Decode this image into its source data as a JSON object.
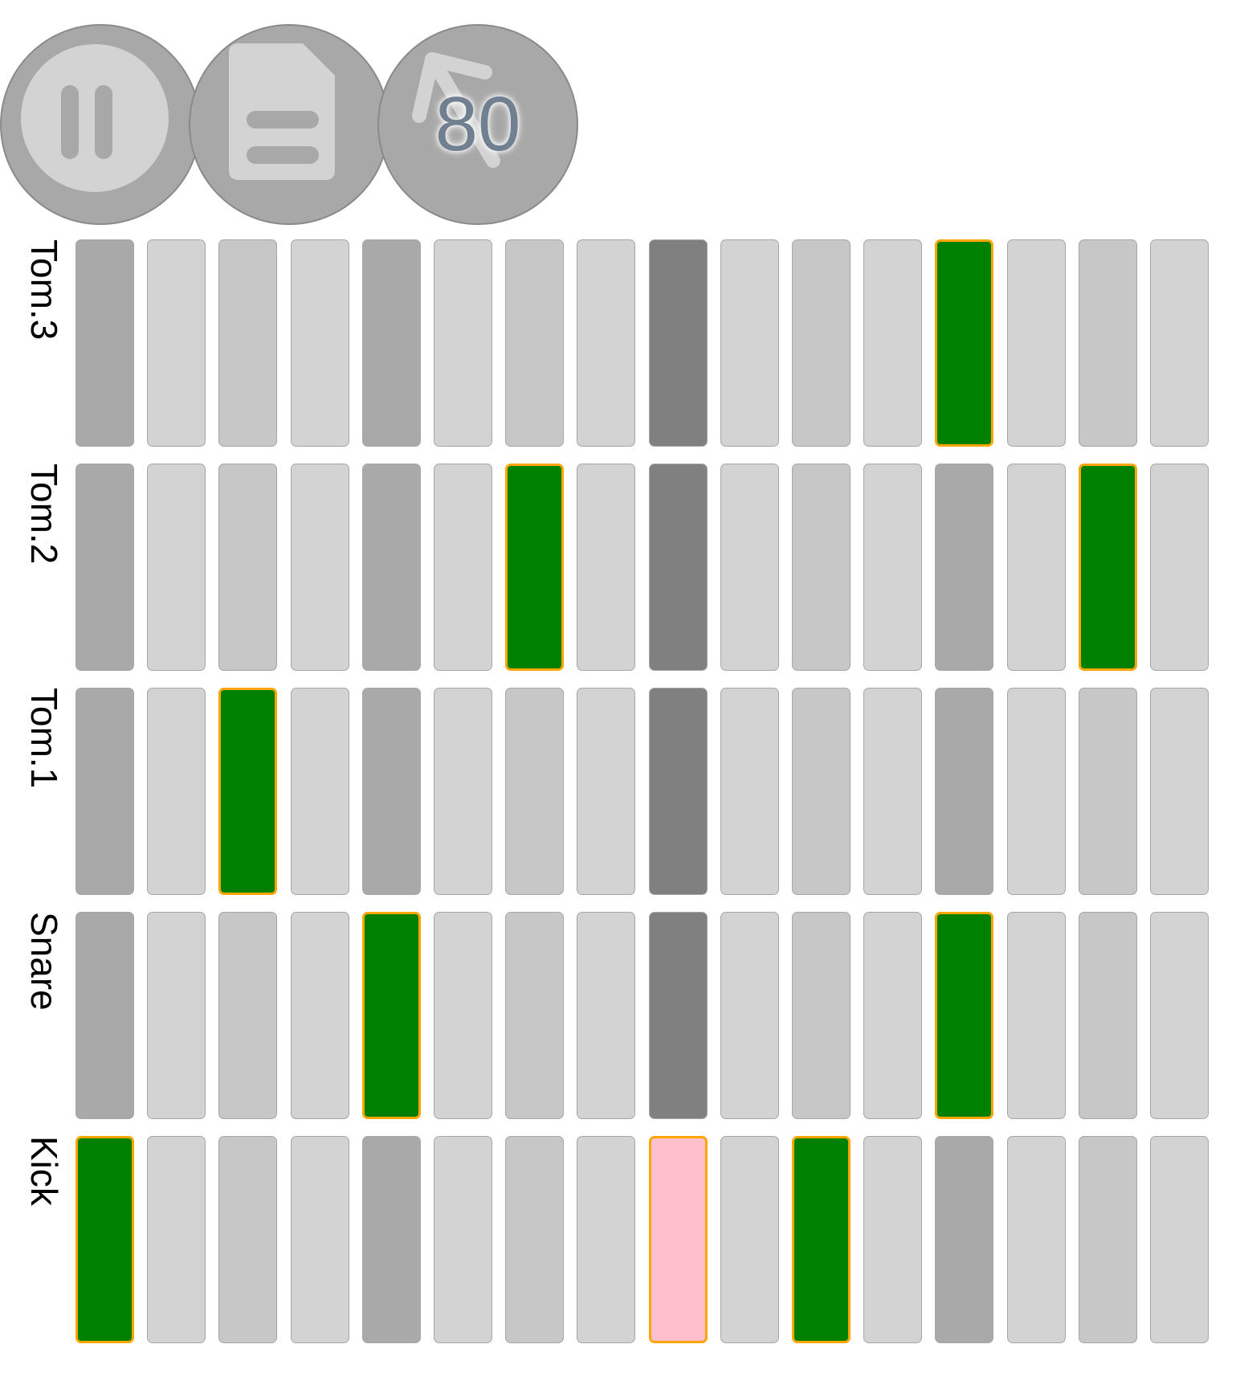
{
  "toolbar": {
    "play_pause_icon": "pause-icon",
    "file_icon": "file-icon",
    "tempo_icon": "arrow-up-left-icon",
    "tempo": "80"
  },
  "colors": {
    "button": "#a8a8a8",
    "icon": "#d3d3d3",
    "tempo_text": "#708090",
    "active_cell": "#008000",
    "active_border": "#ffa500",
    "playhead_hit": "#ffc0cb",
    "beat_cell": "#a9a9a9",
    "bar_cell": "#808080",
    "cell_light": "#d3d3d3",
    "cell_mid": "#c7c7c7"
  },
  "steps": 16,
  "tracks": [
    {
      "name": "Tom.3",
      "active": [
        12
      ],
      "hit": []
    },
    {
      "name": "Tom.2",
      "active": [
        6,
        14
      ],
      "hit": []
    },
    {
      "name": "Tom.1",
      "active": [
        2
      ],
      "hit": []
    },
    {
      "name": "Snare",
      "active": [
        4,
        12
      ],
      "hit": []
    },
    {
      "name": "Kick",
      "active": [
        0,
        10
      ],
      "hit": [
        8
      ]
    }
  ]
}
